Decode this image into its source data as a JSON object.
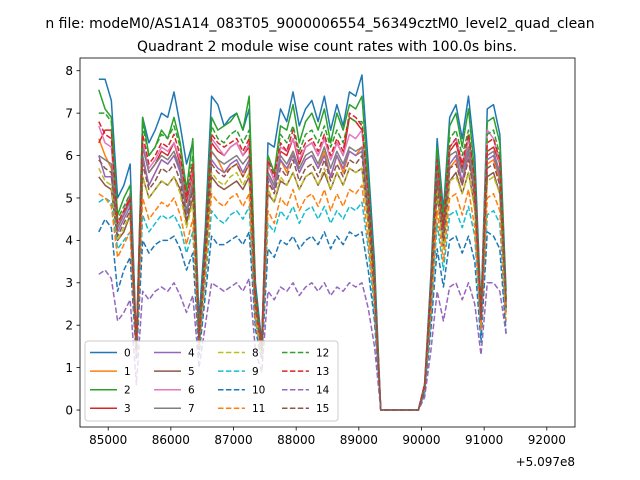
{
  "chart_data": {
    "type": "line",
    "suptitle": "n file: modeM0/AS1A14_083T05_9000006554_56349cztM0_level2_quad_clean",
    "title": "Quadrant 2 module wise count rates with 100.0s bins.",
    "xlabel": "",
    "ylabel": "",
    "x_offset_label": "+5.097e8",
    "xlim": [
      84550,
      92450
    ],
    "ylim": [
      -0.4,
      8.3
    ],
    "x_ticks": [
      {
        "value": 85000,
        "label": "85000"
      },
      {
        "value": 86000,
        "label": "86000"
      },
      {
        "value": 87000,
        "label": "87000"
      },
      {
        "value": 88000,
        "label": "88000"
      },
      {
        "value": 89000,
        "label": "89000"
      },
      {
        "value": 90000,
        "label": "90000"
      },
      {
        "value": 91000,
        "label": "91000"
      },
      {
        "value": 92000,
        "label": "92000"
      }
    ],
    "y_ticks": [
      {
        "value": 0,
        "label": "0"
      },
      {
        "value": 1,
        "label": "1"
      },
      {
        "value": 2,
        "label": "2"
      },
      {
        "value": 3,
        "label": "3"
      },
      {
        "value": 4,
        "label": "4"
      },
      {
        "value": 5,
        "label": "5"
      },
      {
        "value": 6,
        "label": "6"
      },
      {
        "value": 7,
        "label": "7"
      },
      {
        "value": 8,
        "label": "8"
      }
    ],
    "x_start": 84850,
    "x_step": 100,
    "legend_position": "lower-left",
    "legend_columns": 4,
    "series": [
      {
        "name": "0",
        "color": "#1f77b4",
        "dash": "solid",
        "values": [
          7.8,
          7.8,
          7.3,
          5.0,
          5.3,
          5.8,
          1.6,
          6.9,
          6.3,
          6.6,
          7.0,
          6.9,
          7.5,
          6.7,
          5.8,
          6.3,
          2.1,
          4.3,
          7.4,
          7.2,
          6.7,
          6.9,
          7.0,
          6.6,
          7.1,
          3.0,
          1.6,
          6.3,
          6.2,
          7.1,
          6.8,
          7.5,
          6.7,
          7.1,
          7.3,
          6.8,
          7.4,
          6.6,
          7.2,
          6.7,
          7.5,
          7.4,
          7.9,
          5.8,
          3.5,
          0.0,
          0.0,
          0.0,
          0.0,
          0.0,
          0.0,
          0.0,
          0.6,
          3.2,
          6.4,
          4.7,
          6.9,
          7.2,
          6.4,
          7.4,
          6.0,
          2.4,
          7.1,
          7.2,
          6.5,
          2.8
        ]
      },
      {
        "name": "1",
        "color": "#ff7f0e",
        "dash": "solid",
        "values": [
          6.4,
          6.0,
          5.7,
          4.4,
          4.6,
          5.0,
          1.6,
          5.9,
          5.3,
          5.6,
          5.9,
          5.8,
          6.0,
          5.7,
          4.7,
          5.2,
          1.8,
          3.7,
          6.1,
          5.9,
          5.6,
          5.7,
          5.8,
          5.5,
          5.8,
          2.5,
          1.5,
          5.3,
          5.2,
          5.9,
          5.6,
          6.1,
          5.6,
          5.9,
          6.0,
          5.7,
          6.1,
          5.5,
          6.0,
          5.6,
          6.1,
          6.0,
          6.2,
          4.8,
          2.9,
          0.0,
          0.0,
          0.0,
          0.0,
          0.0,
          0.0,
          0.0,
          0.5,
          2.7,
          5.3,
          4.0,
          5.7,
          5.9,
          5.3,
          6.0,
          5.0,
          2.1,
          5.8,
          5.9,
          5.4,
          2.4
        ]
      },
      {
        "name": "2",
        "color": "#2ca02c",
        "dash": "solid",
        "values": [
          7.55,
          7.1,
          6.9,
          4.6,
          5.0,
          5.3,
          1.5,
          6.9,
          6.0,
          6.2,
          6.6,
          6.4,
          6.9,
          6.3,
          5.2,
          6.4,
          1.7,
          4.0,
          6.9,
          6.6,
          6.7,
          6.8,
          7.0,
          6.6,
          7.4,
          2.8,
          1.5,
          6.0,
          5.6,
          6.7,
          6.6,
          7.2,
          6.3,
          6.8,
          7.0,
          6.6,
          7.1,
          6.3,
          7.0,
          6.6,
          7.2,
          7.1,
          7.4,
          5.4,
          3.2,
          0.0,
          0.0,
          0.0,
          0.0,
          0.0,
          0.0,
          0.0,
          0.6,
          3.0,
          6.2,
          4.5,
          6.7,
          7.0,
          6.2,
          7.1,
          5.6,
          2.3,
          6.8,
          6.9,
          6.3,
          2.6
        ]
      },
      {
        "name": "3",
        "color": "#d62728",
        "dash": "solid",
        "values": [
          6.3,
          6.6,
          6.6,
          4.3,
          4.6,
          5.0,
          1.5,
          6.3,
          5.6,
          5.8,
          6.1,
          6.0,
          6.3,
          5.8,
          4.9,
          5.6,
          1.6,
          3.8,
          6.3,
          6.1,
          6.0,
          6.2,
          6.3,
          6.0,
          6.2,
          2.6,
          1.5,
          5.6,
          5.3,
          6.1,
          6.0,
          6.4,
          5.8,
          6.2,
          6.3,
          6.0,
          6.4,
          5.9,
          6.3,
          6.0,
          6.9,
          6.8,
          6.6,
          5.1,
          3.0,
          0.0,
          0.0,
          0.0,
          0.0,
          0.0,
          0.0,
          0.0,
          0.6,
          2.9,
          5.8,
          4.3,
          6.1,
          6.3,
          5.7,
          6.4,
          5.4,
          2.2,
          6.1,
          6.2,
          5.8,
          2.6
        ]
      },
      {
        "name": "4",
        "color": "#9467bd",
        "dash": "solid",
        "values": [
          6.0,
          5.5,
          5.5,
          4.2,
          4.5,
          4.8,
          1.5,
          6.0,
          5.3,
          5.6,
          5.9,
          5.8,
          6.0,
          5.6,
          4.6,
          5.3,
          1.7,
          3.6,
          5.9,
          5.7,
          5.6,
          5.8,
          5.9,
          5.6,
          5.9,
          2.5,
          1.5,
          5.5,
          5.2,
          5.9,
          5.7,
          6.0,
          5.6,
          5.9,
          6.0,
          5.7,
          6.0,
          5.5,
          6.0,
          5.7,
          6.1,
          6.0,
          6.1,
          4.7,
          2.8,
          0.0,
          0.0,
          0.0,
          0.0,
          0.0,
          0.0,
          0.0,
          0.5,
          2.7,
          5.5,
          4.0,
          5.8,
          6.0,
          5.4,
          6.1,
          5.1,
          2.1,
          5.9,
          6.0,
          5.5,
          2.4
        ]
      },
      {
        "name": "5",
        "color": "#8c564b",
        "dash": "solid",
        "values": [
          5.5,
          5.3,
          5.2,
          4.0,
          4.2,
          4.6,
          1.4,
          5.5,
          5.0,
          5.2,
          5.4,
          5.3,
          5.5,
          5.2,
          4.4,
          5.0,
          1.6,
          3.4,
          5.5,
          5.3,
          5.2,
          5.3,
          5.4,
          5.2,
          5.5,
          2.3,
          1.4,
          5.1,
          4.9,
          5.4,
          5.3,
          5.6,
          5.2,
          5.5,
          5.6,
          5.3,
          5.6,
          5.2,
          5.6,
          5.3,
          5.7,
          5.6,
          5.7,
          4.4,
          2.7,
          0.0,
          0.0,
          0.0,
          0.0,
          0.0,
          0.0,
          0.0,
          0.5,
          2.5,
          5.1,
          3.8,
          5.4,
          5.6,
          5.1,
          5.6,
          4.8,
          2.0,
          5.5,
          5.6,
          5.1,
          2.3
        ]
      },
      {
        "name": "6",
        "color": "#e377c2",
        "dash": "solid",
        "values": [
          6.7,
          6.3,
          6.2,
          4.4,
          4.7,
          5.1,
          1.5,
          6.3,
          5.7,
          5.9,
          6.2,
          6.1,
          6.3,
          5.9,
          5.0,
          5.7,
          1.7,
          3.8,
          6.4,
          6.2,
          6.0,
          6.2,
          6.3,
          6.0,
          6.3,
          2.6,
          1.5,
          5.8,
          5.4,
          6.2,
          6.1,
          6.4,
          5.9,
          6.2,
          6.3,
          6.0,
          6.4,
          5.9,
          6.3,
          6.0,
          6.5,
          6.4,
          6.6,
          5.0,
          3.0,
          0.0,
          0.0,
          0.0,
          0.0,
          0.0,
          0.0,
          0.0,
          0.6,
          2.8,
          5.9,
          4.3,
          6.2,
          6.4,
          5.8,
          6.4,
          5.3,
          2.2,
          6.6,
          6.4,
          5.8,
          2.5
        ]
      },
      {
        "name": "7",
        "color": "#7f7f7f",
        "dash": "solid",
        "values": [
          6.0,
          5.9,
          5.8,
          4.3,
          4.6,
          4.9,
          1.5,
          6.2,
          5.6,
          5.8,
          6.0,
          5.9,
          6.1,
          5.7,
          4.7,
          5.4,
          1.7,
          3.7,
          6.1,
          5.9,
          5.8,
          5.9,
          6.0,
          5.8,
          6.0,
          2.5,
          1.5,
          5.6,
          5.3,
          6.0,
          5.8,
          6.1,
          5.7,
          6.0,
          6.1,
          5.8,
          6.2,
          5.7,
          6.1,
          5.8,
          6.2,
          6.1,
          6.2,
          4.8,
          2.9,
          0.0,
          0.0,
          0.0,
          0.0,
          0.0,
          0.0,
          0.0,
          0.5,
          2.7,
          5.7,
          4.1,
          6.0,
          6.1,
          5.6,
          6.2,
          5.2,
          2.1,
          6.0,
          6.1,
          5.6,
          2.4
        ]
      },
      {
        "name": "8",
        "color": "#bcbd22",
        "dash": "dashed",
        "values": [
          5.7,
          5.4,
          5.3,
          4.0,
          4.3,
          4.6,
          1.4,
          5.5,
          5.0,
          5.2,
          5.4,
          5.3,
          5.5,
          5.1,
          4.3,
          4.9,
          1.6,
          3.4,
          5.6,
          5.4,
          5.3,
          5.5,
          5.6,
          5.3,
          5.6,
          2.3,
          1.4,
          5.2,
          4.9,
          5.5,
          5.3,
          5.6,
          5.2,
          5.5,
          5.6,
          5.3,
          5.7,
          5.2,
          5.6,
          5.3,
          5.7,
          5.6,
          5.7,
          4.4,
          2.7,
          0.0,
          0.0,
          0.0,
          0.0,
          0.0,
          0.0,
          0.0,
          0.5,
          2.5,
          5.2,
          3.8,
          5.4,
          5.5,
          5.1,
          5.6,
          4.7,
          2.0,
          5.4,
          5.5,
          5.1,
          2.3
        ]
      },
      {
        "name": "9",
        "color": "#17becf",
        "dash": "dashed",
        "values": [
          4.9,
          5.0,
          4.9,
          3.8,
          4.0,
          4.2,
          1.3,
          4.6,
          4.2,
          4.4,
          4.6,
          4.5,
          4.6,
          4.3,
          3.7,
          4.2,
          1.5,
          3.0,
          4.7,
          4.5,
          4.4,
          4.6,
          4.7,
          4.5,
          4.8,
          2.1,
          1.3,
          4.4,
          4.2,
          4.7,
          4.5,
          4.8,
          4.4,
          4.7,
          4.8,
          4.5,
          4.8,
          4.4,
          4.7,
          4.5,
          4.8,
          4.7,
          4.9,
          3.8,
          2.3,
          0.0,
          0.0,
          0.0,
          0.0,
          0.0,
          0.0,
          0.0,
          0.4,
          2.2,
          4.4,
          3.3,
          4.6,
          4.7,
          4.3,
          4.8,
          4.1,
          1.8,
          4.6,
          4.7,
          4.4,
          2.0
        ]
      },
      {
        "name": "10",
        "color": "#1f77b4",
        "dash": "dashed",
        "values": [
          4.2,
          4.5,
          4.3,
          2.8,
          3.3,
          3.6,
          1.2,
          4.0,
          3.7,
          3.9,
          4.0,
          4.0,
          4.1,
          3.8,
          3.3,
          3.7,
          1.3,
          2.7,
          4.1,
          3.9,
          3.9,
          4.0,
          4.1,
          3.9,
          4.2,
          1.9,
          1.2,
          3.8,
          3.6,
          4.0,
          3.9,
          4.1,
          3.8,
          4.0,
          4.1,
          3.9,
          4.2,
          3.8,
          4.1,
          3.9,
          4.2,
          4.1,
          4.2,
          3.3,
          2.1,
          0.0,
          0.0,
          0.0,
          0.0,
          0.0,
          0.0,
          0.0,
          0.4,
          1.9,
          3.8,
          2.9,
          4.0,
          4.1,
          3.7,
          4.1,
          3.5,
          1.6,
          4.2,
          4.1,
          3.8,
          1.8
        ]
      },
      {
        "name": "11",
        "color": "#ff7f0e",
        "dash": "dashed",
        "values": [
          5.1,
          5.0,
          4.8,
          3.6,
          3.9,
          4.2,
          1.3,
          5.0,
          4.5,
          4.7,
          4.9,
          4.8,
          5.0,
          4.6,
          3.9,
          4.5,
          1.5,
          3.2,
          5.1,
          4.9,
          4.8,
          5.0,
          5.1,
          4.8,
          5.1,
          2.1,
          1.3,
          4.7,
          4.4,
          5.0,
          4.8,
          5.2,
          4.7,
          5.0,
          5.1,
          4.8,
          5.2,
          4.7,
          5.1,
          4.8,
          5.2,
          5.1,
          5.3,
          4.0,
          2.5,
          0.0,
          0.0,
          0.0,
          0.0,
          0.0,
          0.0,
          0.0,
          0.5,
          2.3,
          4.7,
          3.5,
          5.0,
          5.1,
          4.6,
          5.2,
          4.3,
          1.9,
          5.0,
          5.1,
          4.7,
          2.1
        ]
      },
      {
        "name": "12",
        "color": "#2ca02c",
        "dash": "dashed",
        "values": [
          7.0,
          7.0,
          6.8,
          4.5,
          4.8,
          5.1,
          1.5,
          6.7,
          6.0,
          6.2,
          6.5,
          6.4,
          6.7,
          6.2,
          5.1,
          6.0,
          1.7,
          4.0,
          6.7,
          6.4,
          6.3,
          6.5,
          6.6,
          6.3,
          6.6,
          2.7,
          1.5,
          6.0,
          5.6,
          6.5,
          6.3,
          6.7,
          6.1,
          6.5,
          6.6,
          6.3,
          6.7,
          6.2,
          6.6,
          6.3,
          6.9,
          6.8,
          6.8,
          5.2,
          3.1,
          0.0,
          0.0,
          0.0,
          0.0,
          0.0,
          0.0,
          0.0,
          0.6,
          2.9,
          6.0,
          4.4,
          6.4,
          6.6,
          6.0,
          6.6,
          5.5,
          2.3,
          6.5,
          6.6,
          6.0,
          2.6
        ]
      },
      {
        "name": "13",
        "color": "#d62728",
        "dash": "dashed",
        "values": [
          6.8,
          6.5,
          6.4,
          4.4,
          4.7,
          5.0,
          1.5,
          6.5,
          5.8,
          6.0,
          6.3,
          6.2,
          6.5,
          6.0,
          5.0,
          5.8,
          1.7,
          3.9,
          6.5,
          6.3,
          6.2,
          6.3,
          6.4,
          6.1,
          6.4,
          2.7,
          1.5,
          5.9,
          5.5,
          6.3,
          6.1,
          6.6,
          6.0,
          6.3,
          6.4,
          6.1,
          6.5,
          6.0,
          6.4,
          6.1,
          7.0,
          6.9,
          6.7,
          5.1,
          3.0,
          0.0,
          0.0,
          0.0,
          0.0,
          0.0,
          0.0,
          0.0,
          0.6,
          2.9,
          5.9,
          4.3,
          6.2,
          6.4,
          5.8,
          6.5,
          5.4,
          2.2,
          6.3,
          6.4,
          5.9,
          2.5
        ]
      },
      {
        "name": "14",
        "color": "#9467bd",
        "dash": "dashed",
        "values": [
          3.2,
          3.3,
          3.1,
          2.1,
          2.3,
          2.6,
          0.6,
          2.8,
          2.6,
          2.8,
          2.9,
          2.8,
          3.0,
          2.7,
          2.3,
          2.7,
          1.0,
          2.0,
          3.0,
          2.9,
          2.8,
          2.9,
          3.0,
          2.8,
          3.1,
          1.4,
          0.9,
          2.8,
          2.6,
          2.9,
          2.8,
          3.0,
          2.7,
          2.9,
          3.0,
          2.8,
          3.0,
          2.7,
          2.9,
          2.8,
          3.0,
          2.9,
          3.0,
          2.4,
          1.5,
          0.0,
          0.0,
          0.0,
          0.0,
          0.0,
          0.0,
          0.0,
          0.3,
          1.4,
          2.8,
          2.1,
          2.9,
          3.0,
          2.6,
          3.0,
          2.5,
          1.3,
          3.0,
          3.0,
          2.8,
          1.8
        ]
      },
      {
        "name": "15",
        "color": "#8c564b",
        "dash": "dashed",
        "values": [
          5.9,
          5.7,
          5.6,
          4.1,
          4.4,
          4.7,
          1.4,
          5.8,
          5.2,
          5.4,
          5.7,
          5.6,
          5.8,
          5.4,
          4.5,
          5.2,
          1.6,
          3.5,
          5.8,
          5.6,
          5.5,
          5.7,
          5.8,
          5.5,
          5.8,
          2.4,
          1.4,
          5.4,
          5.1,
          5.7,
          5.5,
          5.9,
          5.4,
          5.7,
          5.8,
          5.5,
          5.9,
          5.4,
          5.8,
          5.5,
          5.9,
          5.8,
          6.0,
          4.6,
          2.8,
          0.0,
          0.0,
          0.0,
          0.0,
          0.0,
          0.0,
          0.0,
          0.5,
          2.6,
          5.4,
          4.0,
          5.7,
          5.8,
          5.3,
          5.9,
          5.0,
          2.1,
          5.7,
          5.8,
          5.3,
          2.4
        ]
      }
    ]
  }
}
